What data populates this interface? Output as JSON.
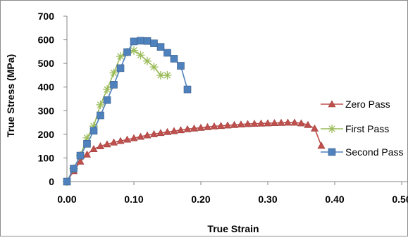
{
  "chart_data": {
    "type": "line",
    "title": "",
    "xlabel": "True Strain",
    "ylabel": "True Stress (MPa)",
    "xlim": [
      0,
      0.5
    ],
    "ylim": [
      0,
      700
    ],
    "x_ticks": [
      0,
      0.1,
      0.2,
      0.3,
      0.4,
      0.5
    ],
    "x_tick_labels": [
      "0.00",
      "0.10",
      "0.20",
      "0.30",
      "0.40",
      "0.50"
    ],
    "y_ticks": [
      0,
      100,
      200,
      300,
      400,
      500,
      600,
      700
    ],
    "y_tick_labels": [
      "0",
      "100",
      "200",
      "300",
      "400",
      "500",
      "600",
      "700"
    ],
    "grid": false,
    "legend_position": "right",
    "series": [
      {
        "name": "Zero Pass",
        "color": "#C0504D",
        "marker": "triangle",
        "x": [
          0,
          0.01,
          0.02,
          0.03,
          0.04,
          0.05,
          0.06,
          0.07,
          0.08,
          0.09,
          0.1,
          0.11,
          0.12,
          0.13,
          0.14,
          0.15,
          0.16,
          0.17,
          0.18,
          0.19,
          0.2,
          0.21,
          0.22,
          0.23,
          0.24,
          0.25,
          0.26,
          0.27,
          0.28,
          0.29,
          0.3,
          0.31,
          0.32,
          0.33,
          0.34,
          0.35,
          0.36,
          0.37,
          0.38
        ],
        "y": [
          0,
          45,
          85,
          115,
          138,
          150,
          158,
          166,
          172,
          178,
          184,
          190,
          196,
          201,
          206,
          210,
          214,
          218,
          222,
          225,
          228,
          231,
          234,
          236,
          238,
          240,
          242,
          244,
          245,
          246,
          247,
          248,
          249,
          250,
          250,
          247,
          240,
          225,
          152
        ]
      },
      {
        "name": "First Pass",
        "color": "#9BBB59",
        "marker": "star",
        "x": [
          0,
          0.01,
          0.02,
          0.03,
          0.04,
          0.05,
          0.06,
          0.07,
          0.08,
          0.09,
          0.1,
          0.11,
          0.12,
          0.13,
          0.14,
          0.15
        ],
        "y": [
          0,
          55,
          110,
          185,
          235,
          325,
          390,
          460,
          530,
          548,
          555,
          535,
          510,
          485,
          450,
          450
        ]
      },
      {
        "name": "Second Pass",
        "color": "#4F81BD",
        "marker": "square",
        "x": [
          0,
          0.01,
          0.02,
          0.03,
          0.04,
          0.05,
          0.06,
          0.07,
          0.08,
          0.09,
          0.1,
          0.11,
          0.12,
          0.13,
          0.14,
          0.15,
          0.16,
          0.17,
          0.18
        ],
        "y": [
          0,
          55,
          110,
          160,
          215,
          280,
          345,
          410,
          480,
          548,
          593,
          596,
          595,
          585,
          570,
          545,
          520,
          490,
          390
        ]
      }
    ]
  }
}
